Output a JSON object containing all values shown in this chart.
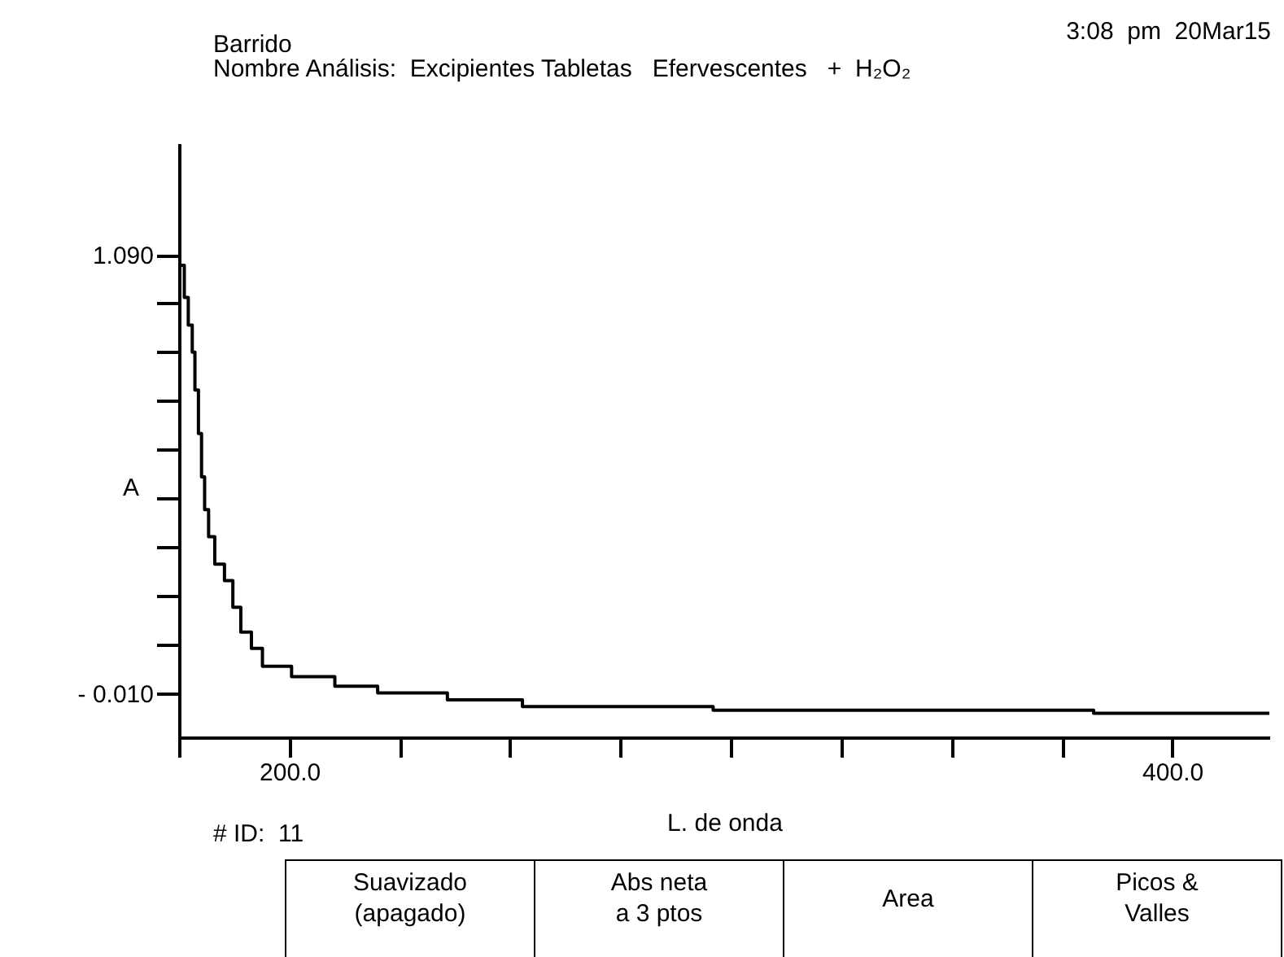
{
  "chart_data": {
    "type": "step",
    "title": "Barrido",
    "subtitle": "Nombre Análisis:  Excipientes Tabletas   Efervescentes   +  H₂O₂",
    "xlabel": "L. de onda",
    "ylabel": "A",
    "annotations": [
      "3:08  pm  20Mar15",
      "# ID:  11",
      "Suavizado\n(apagado)",
      "Abs neta\na 3 ptos",
      "Area",
      "Picos &\nValles"
    ],
    "x": [
      175.4,
      176.2,
      177.1,
      178.0,
      178.6,
      179.4,
      180.1,
      180.8,
      181.7,
      183.1,
      185.3,
      187.2,
      189.0,
      191.4,
      193.9,
      200.5,
      210.3,
      220.0,
      235.8,
      252.8,
      296.0,
      382.2,
      422
    ],
    "series": [
      {
        "color": "#000000",
        "values": [
          1.064,
          0.983,
          0.914,
          0.846,
          0.751,
          0.642,
          0.533,
          0.451,
          0.383,
          0.314,
          0.273,
          0.206,
          0.144,
          0.103,
          0.058,
          0.032,
          0.008,
          -0.009,
          -0.026,
          -0.043,
          -0.052,
          -0.06,
          -0.06
        ]
      }
    ],
    "xlim": [
      175,
      422
    ],
    "ylim": [
      -0.12,
      1.37
    ],
    "xticks": [
      {
        "value": 175,
        "label": null
      },
      {
        "value": 200,
        "label": "200.0"
      },
      {
        "value": 225,
        "label": null
      },
      {
        "value": 250,
        "label": null
      },
      {
        "value": 275,
        "label": null
      },
      {
        "value": 300,
        "label": null
      },
      {
        "value": 325,
        "label": null
      },
      {
        "value": 350,
        "label": null
      },
      {
        "value": 375,
        "label": null
      },
      {
        "value": 400,
        "label": "400.0"
      }
    ],
    "yticks": [
      {
        "value": -0.01,
        "label": "- 0.010"
      },
      {
        "value": 0.112,
        "label": null
      },
      {
        "value": 0.234,
        "label": null
      },
      {
        "value": 0.357,
        "label": null
      },
      {
        "value": 0.479,
        "label": null
      },
      {
        "value": 0.601,
        "label": null
      },
      {
        "value": 0.723,
        "label": null
      },
      {
        "value": 0.846,
        "label": null
      },
      {
        "value": 0.968,
        "label": null
      },
      {
        "value": 1.09,
        "label": "1.090"
      }
    ]
  }
}
